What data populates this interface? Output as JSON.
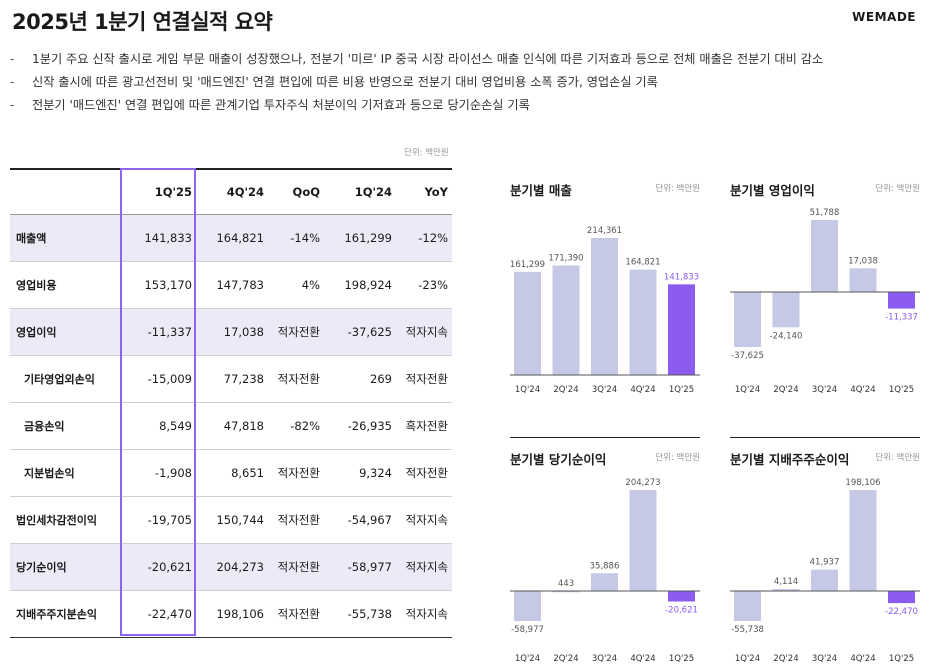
{
  "header": {
    "title": "2025년 1분기 연결실적 요약",
    "logo": "WEMADE"
  },
  "bullets": [
    "1분기 주요 신작 출시로 게임 부문 매출이 성장했으나, 전분기 '미르' IP 중국 시장 라이선스 매출 인식에 따른 기저효과 등으로 전체 매출은 전분기 대비 감소",
    "신작 출시에 따른 광고선전비 및 '매드엔진' 연결 편입에 따른 비용 반영으로 전분기 대비 영업비용 소폭 증가, 영업손실 기록",
    "전분기 '매드엔진' 연결 편입에 따른 관계기업 투자주식 처분이익 기저효과 등으로 당기순손실 기록"
  ],
  "unit_label": "단위: 백만원",
  "table": {
    "columns": [
      "",
      "1Q'25",
      "4Q'24",
      "QoQ",
      "1Q'24",
      "YoY"
    ],
    "rows": [
      {
        "label": "매출액",
        "values": [
          "141,833",
          "164,821",
          "-14%",
          "161,299",
          "-12%"
        ],
        "highlight": true,
        "sub": false
      },
      {
        "label": "영업비용",
        "values": [
          "153,170",
          "147,783",
          "4%",
          "198,924",
          "-23%"
        ],
        "highlight": false,
        "sub": false
      },
      {
        "label": "영업이익",
        "values": [
          "-11,337",
          "17,038",
          "적자전환",
          "-37,625",
          "적자지속"
        ],
        "highlight": true,
        "sub": false
      },
      {
        "label": "기타영업외손익",
        "values": [
          "-15,009",
          "77,238",
          "적자전환",
          "269",
          "적자전환"
        ],
        "highlight": false,
        "sub": true
      },
      {
        "label": "금융손익",
        "values": [
          "8,549",
          "47,818",
          "-82%",
          "-26,935",
          "흑자전환"
        ],
        "highlight": false,
        "sub": true
      },
      {
        "label": "지분법손익",
        "values": [
          "-1,908",
          "8,651",
          "적자전환",
          "9,324",
          "적자전환"
        ],
        "highlight": false,
        "sub": true
      },
      {
        "label": "법인세차감전이익",
        "values": [
          "-19,705",
          "150,744",
          "적자전환",
          "-54,967",
          "적자지속"
        ],
        "highlight": false,
        "sub": false
      },
      {
        "label": "당기순이익",
        "values": [
          "-20,621",
          "204,273",
          "적자전환",
          "-58,977",
          "적자지속"
        ],
        "highlight": true,
        "sub": false
      },
      {
        "label": "지배주주지분손익",
        "values": [
          "-22,470",
          "198,106",
          "적자전환",
          "-55,738",
          "적자지속"
        ],
        "highlight": false,
        "sub": false
      }
    ]
  },
  "colors": {
    "bar_default": "#c5c9e6",
    "bar_highlight": "#8c5cf0",
    "highlight_row": "#eceaf6",
    "label_highlight": "#8c5cf0"
  },
  "chart_data": [
    {
      "type": "bar",
      "title": "분기별 매출",
      "unit": "단위: 백만원",
      "categories": [
        "1Q'24",
        "2Q'24",
        "3Q'24",
        "4Q'24",
        "1Q'25"
      ],
      "values": [
        161299,
        171390,
        214361,
        164821,
        141833
      ],
      "labels": [
        "161,299",
        "171,390",
        "214,361",
        "164,821",
        "141,833"
      ],
      "highlight_index": 4
    },
    {
      "type": "bar",
      "title": "분기별 영업이익",
      "unit": "단위: 백만원",
      "categories": [
        "1Q'24",
        "2Q'24",
        "3Q'24",
        "4Q'24",
        "1Q'25"
      ],
      "values": [
        -37625,
        -24140,
        51788,
        17038,
        -11337
      ],
      "labels": [
        "-37,625",
        "-24,140",
        "51,788",
        "17,038",
        "-11,337"
      ],
      "highlight_index": 4
    },
    {
      "type": "bar",
      "title": "분기별 당기순이익",
      "unit": "단위: 백만원",
      "categories": [
        "1Q'24",
        "2Q'24",
        "3Q'24",
        "4Q'24",
        "1Q'25"
      ],
      "values": [
        -58977,
        443,
        35886,
        204273,
        -20621
      ],
      "labels": [
        "-58,977",
        "443",
        "35,886",
        "204,273",
        "-20,621"
      ],
      "highlight_index": 4
    },
    {
      "type": "bar",
      "title": "분기별 지배주주순이익",
      "unit": "단위: 백만원",
      "categories": [
        "1Q'24",
        "2Q'24",
        "3Q'24",
        "4Q'24",
        "1Q'25"
      ],
      "values": [
        -55738,
        4114,
        41937,
        198106,
        -22470
      ],
      "labels": [
        "-55,738",
        "4,114",
        "41,937",
        "198,106",
        "-22,470"
      ],
      "highlight_index": 4
    }
  ]
}
